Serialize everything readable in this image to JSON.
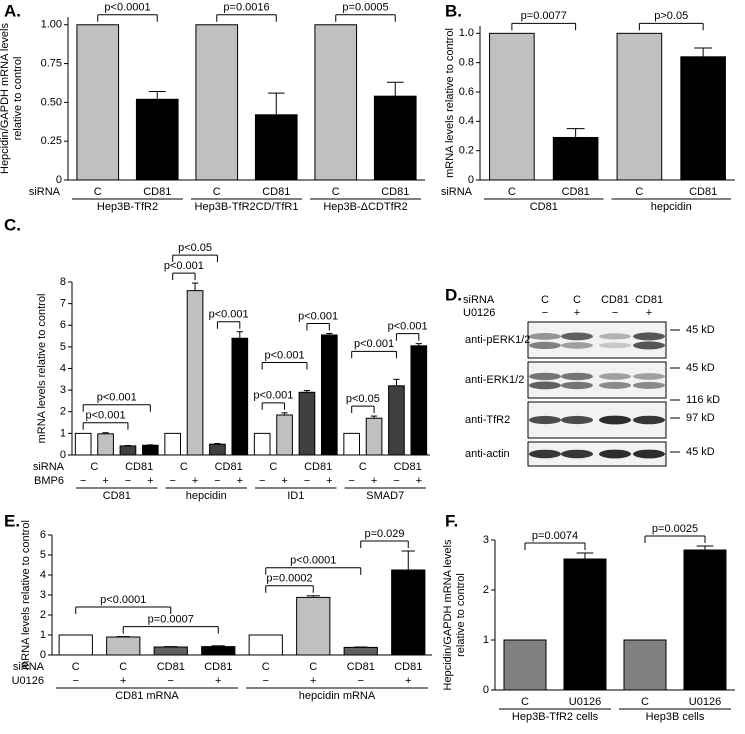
{
  "chart_data": [
    {
      "type": "bar",
      "panel": "A.",
      "ylabel": [
        "Hepcidin/GAPDH mRNA levels",
        "relative to control"
      ],
      "ylim": [
        0,
        1.05
      ],
      "yticks": [
        0,
        {
          "value": 0.25,
          "label": "0.25"
        },
        {
          "value": 0.5,
          "label": "0.50"
        },
        {
          "value": 0.75,
          "label": "0.75"
        },
        {
          "value": 1,
          "label": "1.00"
        }
      ],
      "values": [
        1,
        0.52,
        1,
        0.42,
        1,
        0.54
      ],
      "errors": [
        null,
        0.05,
        null,
        0.14,
        null,
        0.09
      ],
      "colors": [
        "#c0c0c0",
        "#000000",
        "#c0c0c0",
        "#000000",
        "#c0c0c0",
        "#000000"
      ],
      "annotations": [
        "p<0.0001",
        "p=0.0016",
        "p=0.0005"
      ],
      "rows": [
        {
          "name": "siRNA",
          "labels": [
            "C",
            "CD81",
            "C",
            "CD81",
            "C",
            "CD81"
          ]
        },
        {
          "labels": [
            "Hep3B-TfR2",
            "Hep3B-TfR2CD/TfR1",
            "Hep3B-ΔCDTfR2"
          ]
        }
      ]
    },
    {
      "type": "bar",
      "panel": "B.",
      "ylabel": [
        "mRNA levels relative to control"
      ],
      "ylim": [
        0,
        1.05
      ],
      "yticks": [
        0,
        0.2,
        0.4,
        0.6,
        0.8,
        {
          "value": 1,
          "label": "1.0"
        }
      ],
      "values": [
        1,
        0.29,
        1,
        0.84
      ],
      "errors": [
        null,
        0.06,
        null,
        0.06
      ],
      "colors": [
        "#c0c0c0",
        "#000000",
        "#c0c0c0",
        "#000000"
      ],
      "annotations": [
        "p=0.0077",
        "p>0.05"
      ],
      "rows": [
        {
          "name": "siRNA",
          "labels": [
            "C",
            "CD81",
            "C",
            "CD81"
          ]
        },
        {
          "labels": [
            "CD81",
            "hepcidin"
          ]
        }
      ]
    },
    {
      "type": "bar",
      "panel": "C.",
      "ylabel": [
        "mRNA levels relative to control"
      ],
      "ylim": [
        0,
        8
      ],
      "yticks": [
        0,
        1,
        2,
        3,
        4,
        5,
        6,
        7,
        8
      ],
      "values": [
        1,
        0.98,
        0.42,
        0.45,
        1,
        7.6,
        0.5,
        5.4,
        1,
        1.85,
        2.9,
        5.55,
        1,
        1.7,
        3.2,
        5.05
      ],
      "errors": [
        null,
        0.05,
        0.02,
        0.02,
        null,
        0.35,
        0.03,
        0.3,
        null,
        0.1,
        0.08,
        0.07,
        null,
        0.1,
        0.3,
        0.1
      ],
      "colors": [
        "#ffffff",
        "#c0c0c0",
        "#404040",
        "#000000",
        "#ffffff",
        "#c0c0c0",
        "#404040",
        "#000000",
        "#ffffff",
        "#c0c0c0",
        "#404040",
        "#000000",
        "#ffffff",
        "#c0c0c0",
        "#404040",
        "#000000"
      ],
      "annotations": [
        "p<0.001",
        "p<0.001",
        "p<0.05",
        "p<0.001",
        "p<0.001",
        "p<0.001",
        "p<0.001",
        "p<0.001",
        "p<0.05",
        "p<0.001",
        "p<0.001"
      ],
      "rows": [
        {
          "name": "siRNA",
          "labels": [
            "C",
            "CD81",
            "C",
            "CD81",
            "C",
            "CD81",
            "C",
            "CD81"
          ]
        },
        {
          "name": "BMP6",
          "labels": [
            "−",
            "+",
            "−",
            "+",
            "−",
            "+",
            "−",
            "+",
            "−",
            "+",
            "−",
            "+",
            "−",
            "+",
            "−",
            "+"
          ]
        },
        {
          "labels": [
            "CD81",
            "hepcidin",
            "ID1",
            "SMAD7"
          ]
        }
      ]
    },
    {
      "type": "bar",
      "panel": "E.",
      "ylabel": [
        "mRNA levels relative to control"
      ],
      "ylim": [
        0,
        6
      ],
      "yticks": [
        0,
        1,
        2,
        3,
        4,
        5,
        6
      ],
      "values": [
        1,
        0.9,
        0.4,
        0.42,
        1,
        2.88,
        0.38,
        4.25
      ],
      "errors": [
        null,
        0.02,
        0.02,
        0.04,
        null,
        0.08,
        0.02,
        0.95
      ],
      "colors": [
        "#ffffff",
        "#c0c0c0",
        "#606060",
        "#000000",
        "#ffffff",
        "#c0c0c0",
        "#606060",
        "#000000"
      ],
      "annotations": [
        "p<0.0001",
        "p=0.0007",
        "p=0.0002",
        "p<0.0001",
        "p=0.029"
      ],
      "rows": [
        {
          "name": "siRNA",
          "labels": [
            "C",
            "C",
            "CD81",
            "CD81",
            "C",
            "C",
            "CD81",
            "CD81"
          ]
        },
        {
          "name": "U0126",
          "labels": [
            "−",
            "+",
            "−",
            "+",
            "−",
            "+",
            "−",
            "+"
          ]
        },
        {
          "labels": [
            "CD81 mRNA",
            "hepcidin mRNA"
          ]
        }
      ]
    },
    {
      "type": "bar",
      "panel": "F.",
      "ylabel": [
        "Hepcidin/GAPDH mRNA levels",
        "relative to control"
      ],
      "ylim": [
        0,
        3
      ],
      "yticks": [
        0,
        1,
        2,
        3
      ],
      "values": [
        1,
        2.62,
        1,
        2.8
      ],
      "errors": [
        null,
        0.12,
        null,
        0.08
      ],
      "colors": [
        "#808080",
        "#000000",
        "#808080",
        "#000000"
      ],
      "annotations": [
        "p=0.0074",
        "p=0.0025"
      ],
      "rows": [
        {
          "labels": [
            "C",
            "U0126",
            "C",
            "U0126"
          ]
        },
        {
          "labels": [
            "Hep3B-TfR2 cells",
            "Hep3B cells"
          ]
        }
      ]
    }
  ],
  "blot": {
    "panel": "D.",
    "header": [
      {
        "name": "siRNA",
        "labels": [
          "C",
          "C",
          "CD81",
          "CD81"
        ]
      },
      {
        "name": "U0126",
        "labels": [
          "−",
          "+",
          "−",
          "+"
        ]
      }
    ],
    "blots": [
      {
        "label": "anti-pERK1/2",
        "markers": [
          "45 kD"
        ]
      },
      {
        "label": "anti-ERK1/2",
        "markers": [
          "45 kD"
        ]
      },
      {
        "label": "anti-TfR2",
        "markers": [
          "116 kD",
          "97 kD"
        ]
      },
      {
        "label": "anti-actin",
        "markers": [
          "45 kD"
        ]
      }
    ]
  }
}
